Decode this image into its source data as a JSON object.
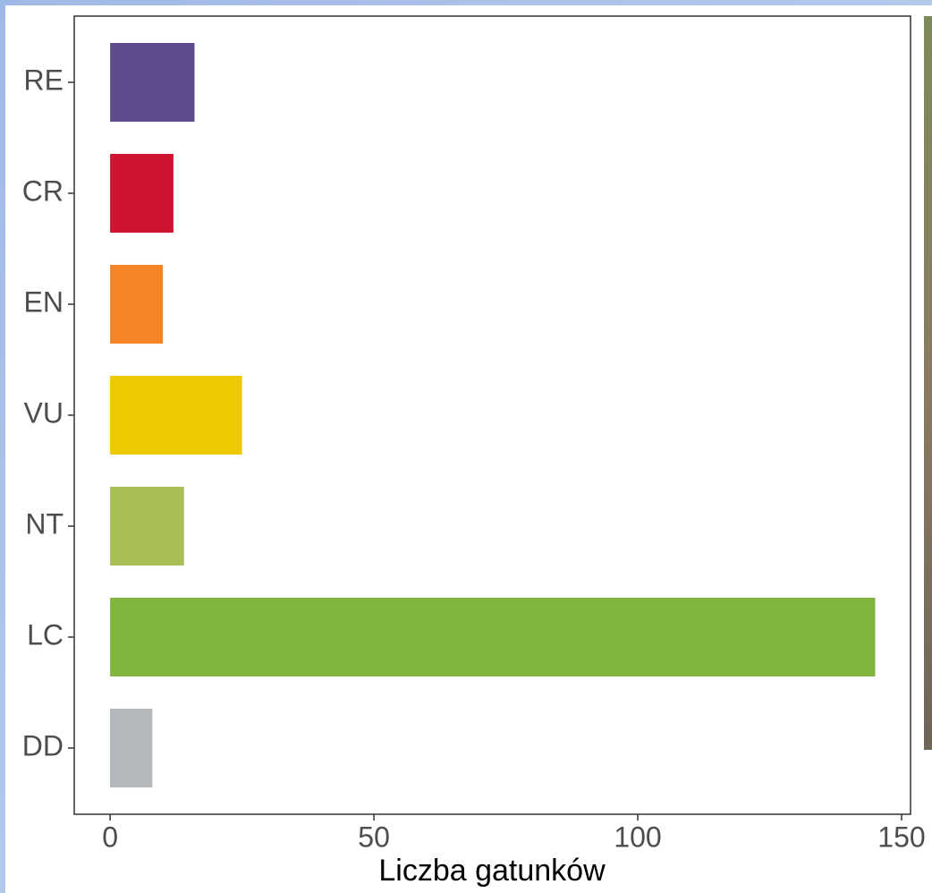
{
  "chart_data": {
    "type": "barh",
    "xlabel": "Liczba gatunków",
    "categories": [
      "RE",
      "CR",
      "EN",
      "VU",
      "NT",
      "LC",
      "DD"
    ],
    "values": [
      16,
      12,
      10,
      25,
      14,
      145,
      8
    ],
    "colors": [
      "#5f4b8b",
      "#cf1430",
      "#f58426",
      "#edc902",
      "#a7bf55",
      "#7fb53c",
      "#b4b7bb"
    ],
    "xlim": [
      -6.8,
      151.7
    ],
    "xticks": [
      0,
      50,
      100,
      150
    ],
    "grid": false
  }
}
